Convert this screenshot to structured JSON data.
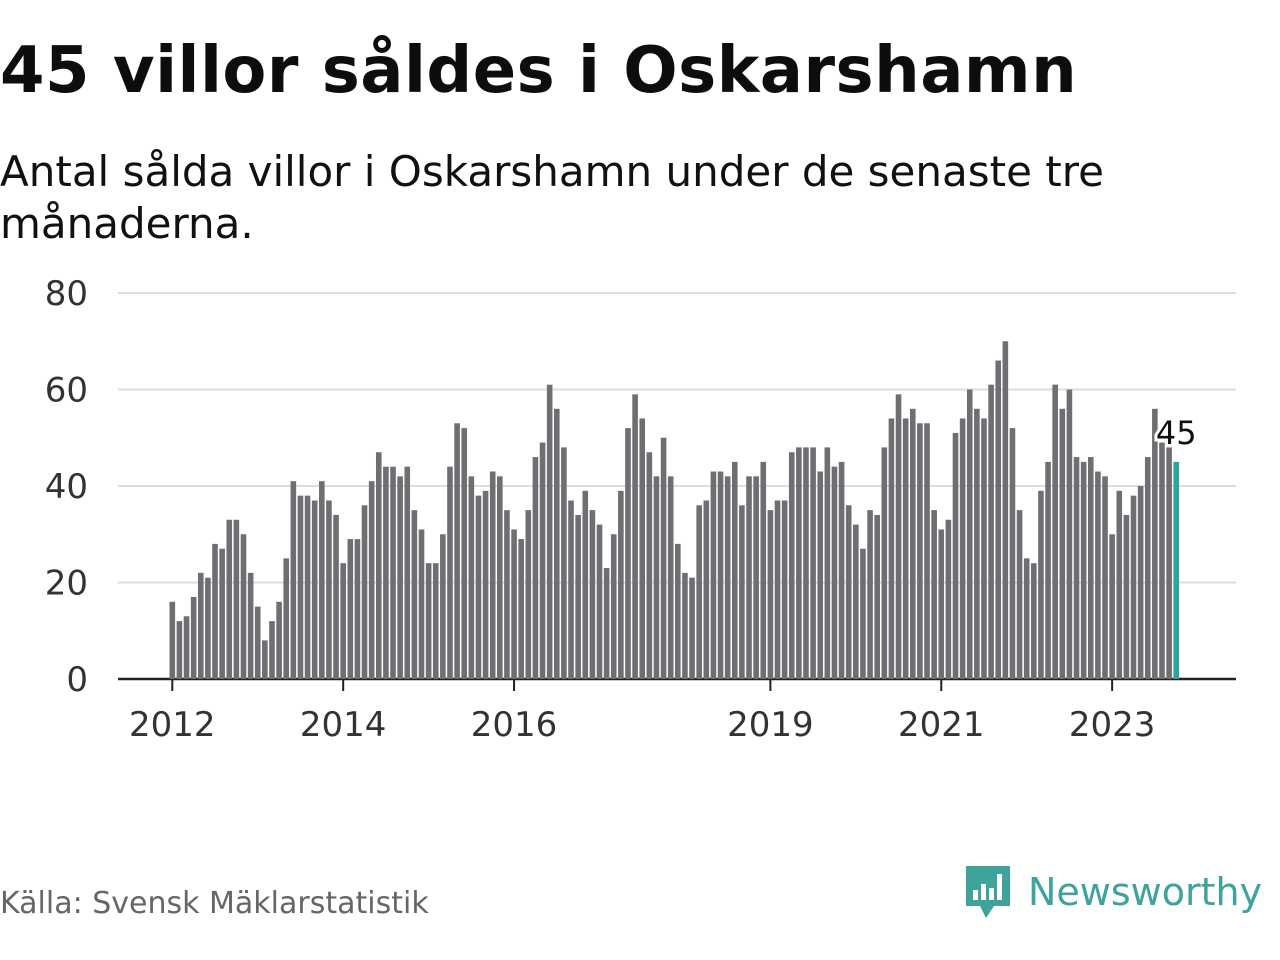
{
  "title": "45 villor såldes i Oskarshamn",
  "subtitle": "Antal sålda villor i Oskarshamn under de senaste tre månaderna.",
  "source": "Källa: Svensk Mäklarstatistik",
  "brand": {
    "name": "Newsworthy",
    "icon": "newsworthy-logo-icon",
    "color": "#3ea39a"
  },
  "colors": {
    "bar": "#6f6e73",
    "highlight": "#2aa59c",
    "grid": "#dddddd",
    "axis": "#222222"
  },
  "chart_data": {
    "type": "bar",
    "title": "45 villor såldes i Oskarshamn",
    "xlabel": "",
    "ylabel": "",
    "ylim": [
      0,
      80
    ],
    "yticks": [
      0,
      20,
      40,
      60,
      80
    ],
    "x_start": "2012-01",
    "xtick_labels": [
      {
        "label": "2012",
        "index": 0
      },
      {
        "label": "2014",
        "index": 24
      },
      {
        "label": "2016",
        "index": 48
      },
      {
        "label": "2019",
        "index": 84
      },
      {
        "label": "2021",
        "index": 108
      },
      {
        "label": "2023",
        "index": 132
      }
    ],
    "values": [
      16,
      12,
      13,
      17,
      22,
      21,
      28,
      27,
      33,
      33,
      30,
      22,
      15,
      8,
      12,
      16,
      25,
      41,
      38,
      38,
      37,
      41,
      37,
      34,
      24,
      29,
      29,
      36,
      41,
      47,
      44,
      44,
      42,
      44,
      35,
      31,
      24,
      24,
      30,
      44,
      53,
      52,
      42,
      38,
      39,
      43,
      42,
      35,
      31,
      29,
      35,
      46,
      49,
      61,
      56,
      48,
      37,
      34,
      39,
      35,
      32,
      23,
      30,
      39,
      52,
      59,
      54,
      47,
      42,
      50,
      42,
      28,
      22,
      21,
      36,
      37,
      43,
      43,
      42,
      45,
      36,
      42,
      42,
      45,
      35,
      37,
      37,
      47,
      48,
      48,
      48,
      43,
      48,
      44,
      45,
      36,
      32,
      27,
      35,
      34,
      48,
      54,
      59,
      54,
      56,
      53,
      53,
      35,
      31,
      33,
      51,
      54,
      60,
      56,
      54,
      61,
      66,
      70,
      52,
      35,
      25,
      24,
      39,
      45,
      61,
      56,
      60,
      46,
      45,
      46,
      43,
      42,
      30,
      39,
      34,
      38,
      40,
      46,
      56,
      49,
      48,
      45
    ],
    "highlight_index": 141,
    "highlight_label": "45"
  }
}
